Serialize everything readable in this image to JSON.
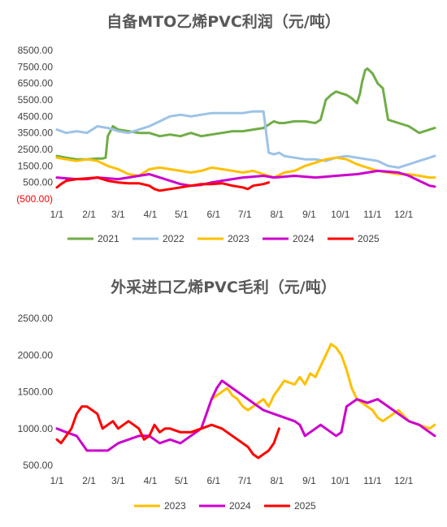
{
  "chart_data": [
    {
      "type": "line",
      "title": "自备MTO乙烯PVC利润（元/吨）",
      "x_ticks": [
        "1/1",
        "2/1",
        "3/1",
        "4/1",
        "5/1",
        "6/1",
        "7/1",
        "8/1",
        "9/1",
        "10/1",
        "11/1",
        "12/1"
      ],
      "y_ticks": [
        "8500.00",
        "7500.00",
        "6500.00",
        "5500.00",
        "4500.00",
        "3500.00",
        "2500.00",
        "1500.00",
        "500.00",
        "(500.00)"
      ],
      "ylim": [
        -500,
        8500
      ],
      "negative_tick_color": "#ff0000",
      "legend_position": "bottom",
      "series": [
        {
          "name": "2021",
          "color": "#70ad47",
          "x": [
            1,
            10,
            20,
            30,
            40,
            45,
            48,
            50,
            55,
            60,
            70,
            80,
            90,
            100,
            110,
            120,
            130,
            140,
            150,
            160,
            170,
            180,
            190,
            200,
            205,
            210,
            215,
            220,
            230,
            240,
            250,
            255,
            260,
            265,
            270,
            275,
            280,
            285,
            290,
            293,
            295,
            298,
            300,
            305,
            310,
            315,
            320,
            330,
            340,
            350,
            360,
            365
          ],
          "y": [
            2100,
            2000,
            1900,
            1900,
            1950,
            1950,
            2000,
            3300,
            3900,
            3700,
            3600,
            3500,
            3500,
            3300,
            3400,
            3300,
            3500,
            3300,
            3400,
            3500,
            3600,
            3600,
            3700,
            3800,
            4000,
            4200,
            4100,
            4100,
            4200,
            4200,
            4100,
            4300,
            5500,
            5800,
            6000,
            5900,
            5800,
            5600,
            5300,
            5900,
            6600,
            7300,
            7400,
            7100,
            6500,
            6200,
            4300,
            4100,
            3900,
            3500,
            3700,
            3800
          ]
        },
        {
          "name": "2022",
          "color": "#9dc3e6",
          "x": [
            1,
            10,
            20,
            30,
            40,
            50,
            60,
            70,
            80,
            90,
            100,
            110,
            120,
            130,
            140,
            150,
            160,
            170,
            180,
            190,
            200,
            205,
            210,
            215,
            220,
            230,
            240,
            250,
            260,
            270,
            280,
            290,
            300,
            310,
            320,
            330,
            340,
            350,
            360,
            365
          ],
          "y": [
            3700,
            3500,
            3600,
            3500,
            3900,
            3800,
            3600,
            3500,
            3700,
            3900,
            4200,
            4500,
            4600,
            4500,
            4600,
            4700,
            4700,
            4700,
            4700,
            4800,
            4800,
            2300,
            2200,
            2300,
            2100,
            2000,
            1900,
            1900,
            1800,
            2000,
            2100,
            2000,
            1900,
            1800,
            1500,
            1400,
            1600,
            1800,
            2000,
            2100
          ]
        },
        {
          "name": "2023",
          "color": "#ffc000",
          "x": [
            1,
            10,
            20,
            30,
            40,
            50,
            60,
            70,
            80,
            90,
            100,
            110,
            120,
            130,
            140,
            150,
            160,
            170,
            180,
            190,
            200,
            210,
            220,
            230,
            240,
            250,
            260,
            270,
            280,
            290,
            300,
            310,
            320,
            330,
            340,
            350,
            360,
            365
          ],
          "y": [
            2000,
            1900,
            1800,
            1900,
            1800,
            1500,
            1300,
            1000,
            900,
            1300,
            1400,
            1300,
            1200,
            1100,
            1200,
            1400,
            1300,
            1200,
            1100,
            1200,
            1000,
            800,
            1100,
            1200,
            1500,
            1700,
            1900,
            2000,
            1900,
            1600,
            1400,
            1200,
            1100,
            1000,
            1000,
            900,
            800,
            800
          ]
        },
        {
          "name": "2024",
          "color": "#cc00cc",
          "x": [
            1,
            10,
            20,
            30,
            40,
            50,
            60,
            70,
            80,
            90,
            100,
            110,
            120,
            130,
            140,
            150,
            160,
            170,
            180,
            190,
            200,
            210,
            220,
            230,
            240,
            250,
            260,
            270,
            280,
            290,
            300,
            310,
            320,
            330,
            340,
            350,
            360,
            365
          ],
          "y": [
            800,
            750,
            700,
            700,
            800,
            750,
            700,
            800,
            900,
            1000,
            800,
            600,
            400,
            300,
            350,
            500,
            600,
            700,
            800,
            850,
            900,
            800,
            850,
            900,
            850,
            800,
            850,
            900,
            950,
            1000,
            1100,
            1200,
            1150,
            1100,
            900,
            600,
            300,
            250
          ]
        },
        {
          "name": "2025",
          "color": "#ff0000",
          "x": [
            1,
            5,
            10,
            20,
            30,
            40,
            45,
            50,
            60,
            70,
            80,
            90,
            95,
            100,
            110,
            120,
            130,
            140,
            150,
            160,
            170,
            180,
            185,
            190,
            200,
            205
          ],
          "y": [
            200,
            400,
            600,
            700,
            750,
            800,
            700,
            600,
            500,
            450,
            450,
            300,
            100,
            0,
            100,
            200,
            300,
            400,
            400,
            450,
            300,
            200,
            100,
            300,
            400,
            500
          ]
        }
      ]
    },
    {
      "type": "line",
      "title": "外采进口乙烯PVC毛利（元/吨）",
      "x_ticks": [
        "1/1",
        "2/1",
        "3/1",
        "4/1",
        "5/1",
        "6/1",
        "7/1",
        "8/1",
        "9/1",
        "10/1",
        "11/1",
        "12/1"
      ],
      "y_ticks": [
        "2500.00",
        "2000.00",
        "1500.00",
        "1000.00",
        "500.00"
      ],
      "ylim": [
        500,
        2500
      ],
      "legend_position": "bottom",
      "series": [
        {
          "name": "2023",
          "color": "#ffc000",
          "x": [
            150,
            155,
            160,
            165,
            170,
            175,
            180,
            185,
            190,
            195,
            200,
            205,
            210,
            215,
            220,
            230,
            235,
            240,
            245,
            250,
            255,
            260,
            265,
            270,
            275,
            280,
            285,
            290,
            295,
            300,
            305,
            310,
            315,
            320,
            325,
            330,
            340,
            350,
            360,
            365
          ],
          "y": [
            1400,
            1450,
            1500,
            1550,
            1450,
            1400,
            1300,
            1250,
            1300,
            1350,
            1400,
            1300,
            1450,
            1550,
            1650,
            1600,
            1700,
            1600,
            1750,
            1700,
            1850,
            2000,
            2150,
            2100,
            2000,
            1800,
            1550,
            1400,
            1350,
            1300,
            1250,
            1150,
            1100,
            1150,
            1200,
            1250,
            1100,
            1050,
            1000,
            1050
          ]
        },
        {
          "name": "2024",
          "color": "#cc00cc",
          "x": [
            1,
            10,
            20,
            30,
            40,
            50,
            60,
            70,
            80,
            90,
            100,
            110,
            120,
            130,
            140,
            150,
            155,
            160,
            165,
            170,
            180,
            190,
            200,
            210,
            220,
            230,
            235,
            240,
            245,
            250,
            255,
            260,
            265,
            270,
            275,
            280,
            290,
            300,
            310,
            320,
            330,
            340,
            350,
            360,
            365
          ],
          "y": [
            1000,
            950,
            900,
            700,
            700,
            700,
            800,
            850,
            900,
            900,
            800,
            850,
            800,
            900,
            1000,
            1400,
            1550,
            1650,
            1600,
            1550,
            1450,
            1350,
            1250,
            1200,
            1150,
            1100,
            1050,
            900,
            950,
            1000,
            1050,
            1000,
            950,
            900,
            950,
            1300,
            1400,
            1350,
            1400,
            1300,
            1200,
            1100,
            1050,
            950,
            900
          ]
        },
        {
          "name": "2025",
          "color": "#ff0000",
          "x": [
            1,
            5,
            10,
            15,
            20,
            25,
            30,
            35,
            40,
            45,
            50,
            55,
            60,
            65,
            70,
            75,
            80,
            85,
            90,
            95,
            100,
            105,
            110,
            120,
            130,
            140,
            150,
            160,
            165,
            170,
            175,
            180,
            185,
            190,
            195,
            200,
            205,
            210,
            215
          ],
          "y": [
            850,
            800,
            900,
            1000,
            1200,
            1300,
            1300,
            1250,
            1200,
            1000,
            1050,
            1100,
            1000,
            1050,
            1100,
            1050,
            1000,
            850,
            900,
            1050,
            950,
            1000,
            1000,
            950,
            950,
            1000,
            1050,
            1000,
            950,
            900,
            850,
            800,
            750,
            650,
            600,
            650,
            700,
            800,
            1000
          ]
        }
      ]
    }
  ]
}
